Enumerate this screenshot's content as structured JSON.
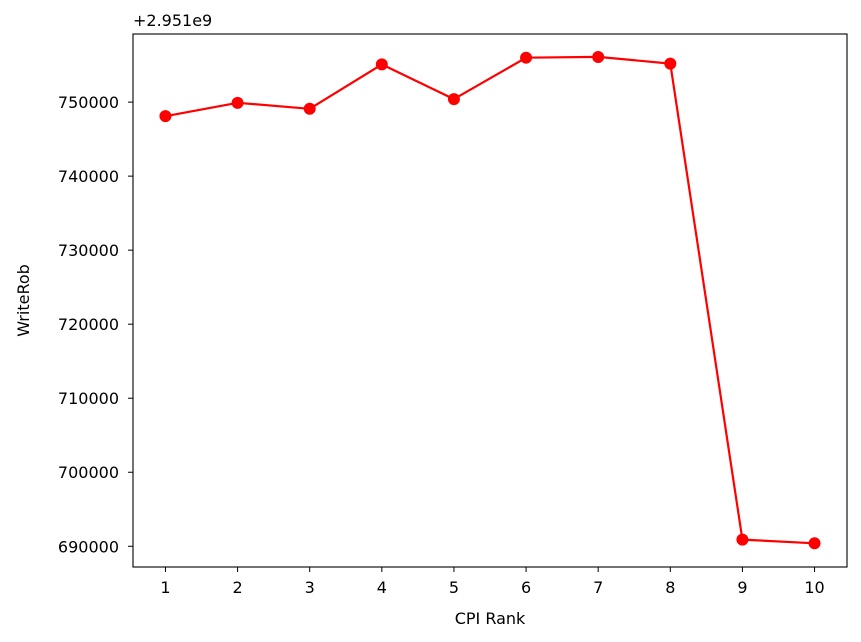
{
  "chart_data": {
    "type": "line",
    "xlabel": "CPI Rank",
    "ylabel": "WriteRob",
    "y_offset_label": "+2.951e9",
    "x": [
      1,
      2,
      3,
      4,
      5,
      6,
      7,
      8,
      9,
      10
    ],
    "x_tick_labels": [
      "1",
      "2",
      "3",
      "4",
      "5",
      "6",
      "7",
      "8",
      "9",
      "10"
    ],
    "y_ticks": [
      690000,
      700000,
      710000,
      720000,
      730000,
      740000,
      750000
    ],
    "y_tick_labels": [
      "690000",
      "700000",
      "710000",
      "720000",
      "730000",
      "740000",
      "750000"
    ],
    "xlim": [
      0.55,
      10.45
    ],
    "ylim": [
      687200,
      759200
    ],
    "grid": false,
    "series": [
      {
        "color": "#ff0000",
        "marker": "circle",
        "values": [
          748100,
          749900,
          749100,
          755100,
          750400,
          756000,
          756100,
          755200,
          690900,
          690400
        ]
      }
    ]
  }
}
